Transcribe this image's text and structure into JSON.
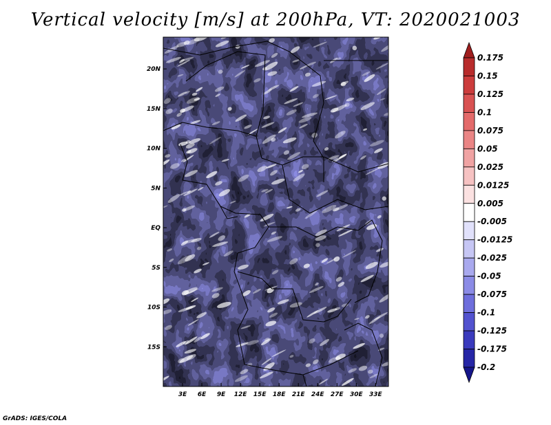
{
  "title": "Vertical velocity [m/s] at 200hPa, VT: 2020021003",
  "footer": "GrADS: IGES/COLA",
  "chart_data": {
    "type": "heatmap",
    "variable": "Vertical velocity",
    "units": "m/s",
    "level": "200hPa",
    "valid_time": "2020021003",
    "xlim": [
      0,
      35
    ],
    "ylim": [
      -20,
      24
    ],
    "x_ticks": [
      {
        "value": 3,
        "label": "3E"
      },
      {
        "value": 6,
        "label": "6E"
      },
      {
        "value": 9,
        "label": "9E"
      },
      {
        "value": 12,
        "label": "12E"
      },
      {
        "value": 15,
        "label": "15E"
      },
      {
        "value": 18,
        "label": "18E"
      },
      {
        "value": 21,
        "label": "21E"
      },
      {
        "value": 24,
        "label": "24E"
      },
      {
        "value": 27,
        "label": "27E"
      },
      {
        "value": 30,
        "label": "30E"
      },
      {
        "value": 33,
        "label": "33E"
      }
    ],
    "y_ticks": [
      {
        "value": 20,
        "label": "20N"
      },
      {
        "value": 15,
        "label": "15N"
      },
      {
        "value": 10,
        "label": "10N"
      },
      {
        "value": 5,
        "label": "5N"
      },
      {
        "value": 0,
        "label": "EQ"
      },
      {
        "value": -5,
        "label": "5S"
      },
      {
        "value": -10,
        "label": "10S"
      },
      {
        "value": -15,
        "label": "15S"
      }
    ],
    "colorbar": {
      "levels": [
        "0.175",
        "0.15",
        "0.125",
        "0.1",
        "0.075",
        "0.05",
        "0.025",
        "0.0125",
        "0.005",
        "-0.005",
        "-0.0125",
        "-0.025",
        "-0.05",
        "-0.075",
        "-0.1",
        "-0.125",
        "-0.175",
        "-0.2"
      ],
      "colors": [
        "#a01e1e",
        "#b82c2c",
        "#cc3c3c",
        "#d95252",
        "#e36a6a",
        "#ea8585",
        "#f0a3a3",
        "#f6c2c2",
        "#fbe1e1",
        "#ffffff",
        "#e1e1fb",
        "#c6c6f4",
        "#a9a9ee",
        "#8b8be6",
        "#6e6edc",
        "#5252cf",
        "#3a3abd",
        "#2626a6",
        "#15158a"
      ]
    }
  }
}
